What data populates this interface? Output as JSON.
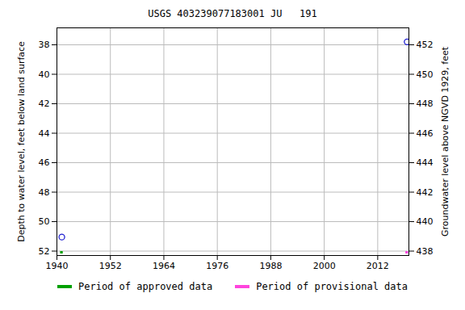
{
  "chart_data": {
    "type": "scatter",
    "title": "USGS 403239077183001 JU   191",
    "ylabel": "Depth to water level, feet below land surface",
    "y2label": "Groundwater level above NGVD 1929, feet",
    "xlim": [
      1940,
      2019
    ],
    "xticks": [
      1940,
      1952,
      1964,
      1976,
      1988,
      2000,
      2012
    ],
    "ylim": [
      52.3,
      36.85
    ],
    "yticks": [
      38,
      40,
      42,
      44,
      46,
      48,
      50,
      52
    ],
    "y2lim": [
      437.7,
      453.15
    ],
    "y2ticks": [
      438,
      440,
      442,
      444,
      446,
      448,
      450,
      452
    ],
    "grid": true,
    "points": {
      "x": [
        1941.1,
        2018.6
      ],
      "values": [
        51.05,
        37.8
      ],
      "color": "#1f1fd0",
      "marker": "circle"
    },
    "periods": [
      {
        "name": "Period of approved data",
        "color": "#00a000",
        "x": [
          1940.8,
          1941.4
        ]
      },
      {
        "name": "Period of provisional data",
        "color": "#ff44dd",
        "x": [
          2018.3,
          2018.9
        ]
      }
    ]
  }
}
